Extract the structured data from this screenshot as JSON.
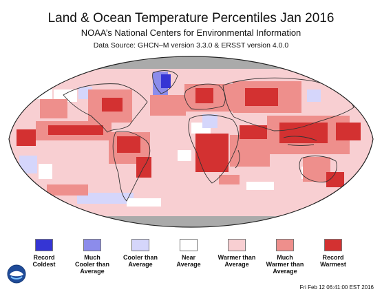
{
  "header": {
    "title": "Land & Ocean Temperature Percentiles Jan 2016",
    "subtitle": "NOAA’s National Centers for Environmental Information",
    "source": "Data Source: GHCN–M version 3.3.0 & ERSST version 4.0.0"
  },
  "legend": {
    "items": [
      {
        "label": "Record\nColdest",
        "color": "#3535d4"
      },
      {
        "label": "Much\nCooler than\nAverage",
        "color": "#8c8ceb"
      },
      {
        "label": "Cooler than\nAverage",
        "color": "#d5d6fb"
      },
      {
        "label": "Near\nAverage",
        "color": "#ffffff"
      },
      {
        "label": "Warmer than\nAverage",
        "color": "#f8cfd2"
      },
      {
        "label": "Much\nWarmer than\nAverage",
        "color": "#ee8f8c"
      },
      {
        "label": "Record\nWarmest",
        "color": "#d33131"
      }
    ]
  },
  "footer": {
    "timestamp": "Fri Feb 12 06:41:00 EST 2016"
  },
  "logo": {
    "icon": "noaa-logo-icon"
  },
  "map": {
    "projection": "robinson",
    "no_data_color": "#aaaaaa"
  }
}
